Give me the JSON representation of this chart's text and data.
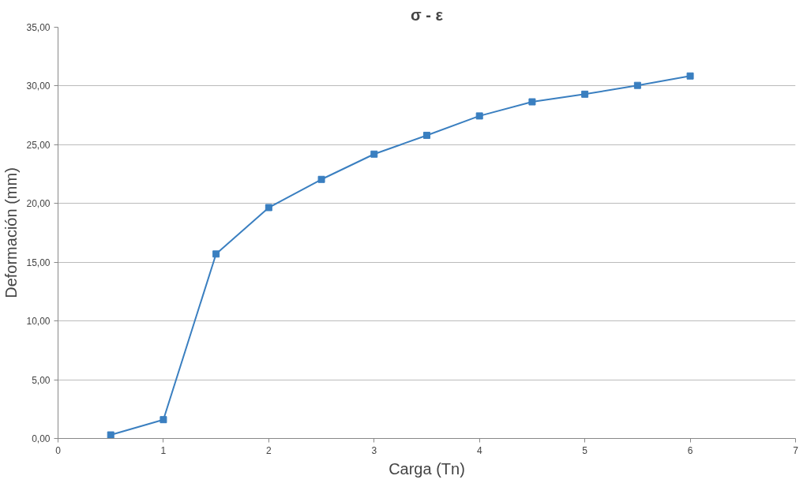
{
  "chart_data": {
    "type": "line",
    "title": "σ - ε",
    "xlabel": "Carga (Tn)",
    "ylabel": "Deformación (mm)",
    "x": [
      0.5,
      1,
      1.5,
      2,
      2.5,
      3,
      3.5,
      4,
      4.5,
      5,
      5.5,
      6
    ],
    "series": [
      {
        "color": "#3a7fc0",
        "values": [
          0.3,
          1.6,
          15.7,
          19.65,
          22.05,
          24.2,
          25.8,
          27.45,
          28.65,
          29.3,
          30.05,
          30.85
        ]
      }
    ],
    "xlim": [
      0,
      7
    ],
    "xticks": [
      0,
      1,
      2,
      3,
      4,
      5,
      6,
      7
    ],
    "ylim": [
      0,
      35
    ],
    "yticks": [
      {
        "value": 0,
        "label": "0,00"
      },
      {
        "value": 5,
        "label": "5,00"
      },
      {
        "value": 10,
        "label": "10,00"
      },
      {
        "value": 15,
        "label": "15,00"
      },
      {
        "value": 20,
        "label": "20,00"
      },
      {
        "value": 25,
        "label": "25,00"
      },
      {
        "value": 30,
        "label": "30,00"
      },
      {
        "value": 35,
        "label": "35,00"
      }
    ],
    "grid": "y",
    "marker": "square",
    "line_style": "solid"
  }
}
